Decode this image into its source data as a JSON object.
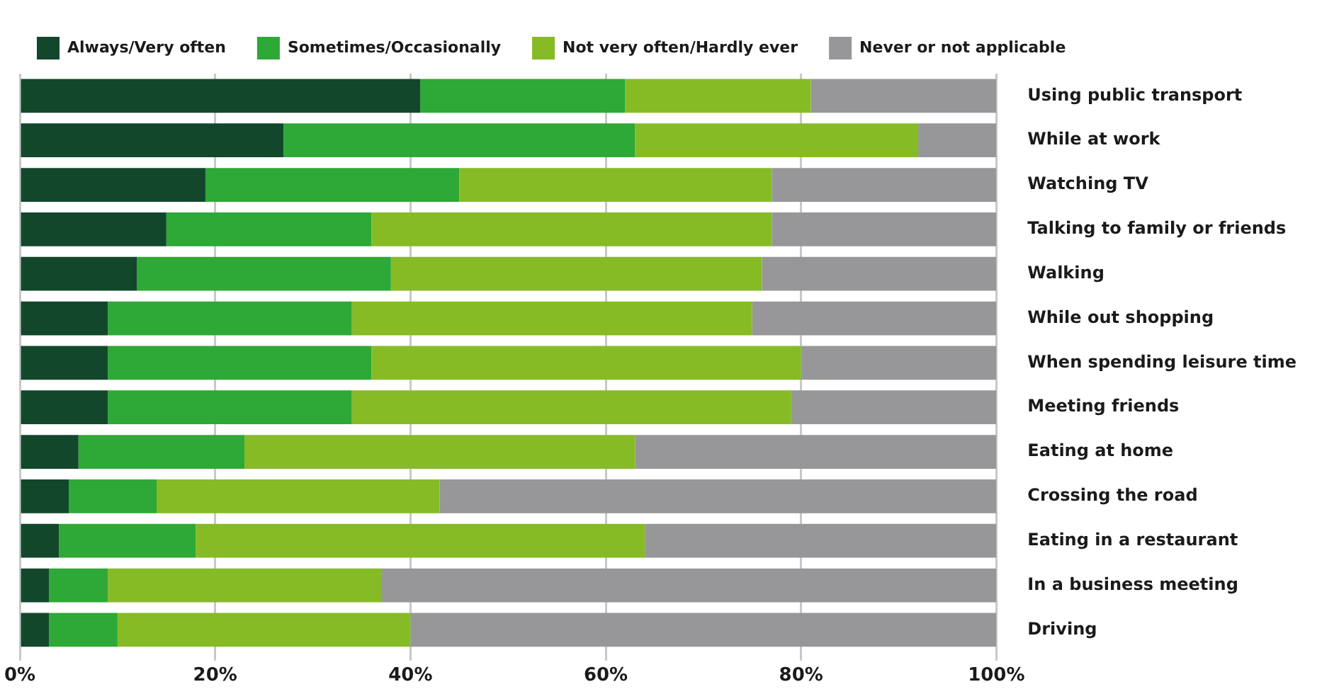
{
  "chart_data": {
    "type": "bar",
    "orientation": "horizontal",
    "stacked": true,
    "legend": "top left",
    "grid": "x",
    "categories": [
      "Using public transport",
      "While at work",
      "Watching TV",
      "Talking to family or friends",
      "Walking",
      "While out shopping",
      "When spending leisure time",
      "Meeting friends",
      "Eating at home",
      "Crossing the road",
      "Eating in a restaurant",
      "In a business meeting",
      "Driving"
    ],
    "xlim": [
      0,
      100
    ],
    "xticks": [
      {
        "value": 0,
        "label": "0%"
      },
      {
        "value": 20,
        "label": "20%"
      },
      {
        "value": 40,
        "label": "40%"
      },
      {
        "value": 60,
        "label": "60%"
      },
      {
        "value": 80,
        "label": "80%"
      },
      {
        "value": 100,
        "label": "100%"
      }
    ],
    "series": [
      {
        "name": "Always/Very often",
        "color": "#12472b",
        "values": [
          41,
          27,
          19,
          15,
          12,
          9,
          9,
          9,
          6,
          5,
          4,
          3,
          3
        ]
      },
      {
        "name": "Sometimes/Occasionally",
        "color": "#2ea836",
        "values": [
          21,
          36,
          26,
          21,
          26,
          25,
          27,
          25,
          17,
          9,
          14,
          6,
          7
        ]
      },
      {
        "name": "Not very often/Hardly ever",
        "color": "#86bb26",
        "values": [
          19,
          29,
          32,
          41,
          38,
          41,
          44,
          45,
          40,
          29,
          46,
          28,
          30
        ]
      },
      {
        "name": "Never or not applicable",
        "color": "#97979a",
        "values": [
          19,
          8,
          23,
          23,
          24,
          25,
          20,
          21,
          37,
          57,
          36,
          63,
          60
        ]
      }
    ]
  }
}
